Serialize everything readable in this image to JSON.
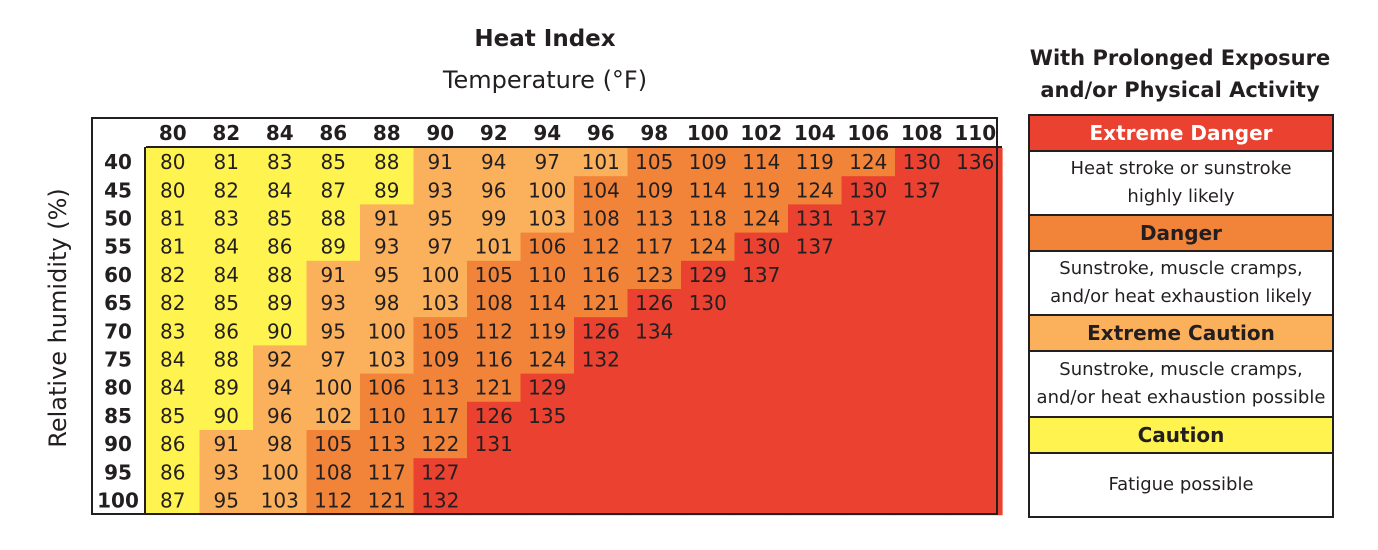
{
  "chart_data": {
    "type": "heatmap",
    "title": "Heat Index",
    "xlabel": "Temperature (°F)",
    "ylabel": "Relative humidity (%)",
    "temperatures": [
      "80",
      "82",
      "84",
      "86",
      "88",
      "90",
      "92",
      "94",
      "96",
      "98",
      "100",
      "102",
      "104",
      "106",
      "108",
      "110"
    ],
    "humidities": [
      "40",
      "45",
      "50",
      "55",
      "60",
      "65",
      "70",
      "75",
      "80",
      "85",
      "90",
      "95",
      "100"
    ],
    "values": [
      [
        80,
        81,
        83,
        85,
        88,
        91,
        94,
        97,
        101,
        105,
        109,
        114,
        119,
        124,
        130,
        136
      ],
      [
        80,
        82,
        84,
        87,
        89,
        93,
        96,
        100,
        104,
        109,
        114,
        119,
        124,
        130,
        137,
        null
      ],
      [
        81,
        83,
        85,
        88,
        91,
        95,
        99,
        103,
        108,
        113,
        118,
        124,
        131,
        137,
        null,
        null
      ],
      [
        81,
        84,
        86,
        89,
        93,
        97,
        101,
        106,
        112,
        117,
        124,
        130,
        137,
        null,
        null,
        null
      ],
      [
        82,
        84,
        88,
        91,
        95,
        100,
        105,
        110,
        116,
        123,
        129,
        137,
        null,
        null,
        null,
        null
      ],
      [
        82,
        85,
        89,
        93,
        98,
        103,
        108,
        114,
        121,
        126,
        130,
        null,
        null,
        null,
        null,
        null
      ],
      [
        83,
        86,
        90,
        95,
        100,
        105,
        112,
        119,
        126,
        134,
        null,
        null,
        null,
        null,
        null,
        null
      ],
      [
        84,
        88,
        92,
        97,
        103,
        109,
        116,
        124,
        132,
        null,
        null,
        null,
        null,
        null,
        null,
        null
      ],
      [
        84,
        89,
        94,
        100,
        106,
        113,
        121,
        129,
        null,
        null,
        null,
        null,
        null,
        null,
        null,
        null
      ],
      [
        85,
        90,
        96,
        102,
        110,
        117,
        126,
        135,
        null,
        null,
        null,
        null,
        null,
        null,
        null,
        null
      ],
      [
        86,
        91,
        98,
        105,
        113,
        122,
        131,
        null,
        null,
        null,
        null,
        null,
        null,
        null,
        null,
        null
      ],
      [
        86,
        93,
        100,
        108,
        117,
        127,
        null,
        null,
        null,
        null,
        null,
        null,
        null,
        null,
        null,
        null
      ],
      [
        87,
        95,
        103,
        112,
        121,
        132,
        null,
        null,
        null,
        null,
        null,
        null,
        null,
        null,
        null,
        null
      ]
    ],
    "categories": [
      {
        "name": "Caution",
        "min": 80,
        "max": 90,
        "color": "#fff34f"
      },
      {
        "name": "Extreme Caution",
        "min": 91,
        "max": 103,
        "color": "#fbb15c"
      },
      {
        "name": "Danger",
        "min": 104,
        "max": 124,
        "color": "#f2843a"
      },
      {
        "name": "Extreme Danger",
        "min": 125,
        "max": 137,
        "color": "#ea4130"
      }
    ]
  },
  "legend": {
    "title_line1": "With Prolonged Exposure",
    "title_line2": "and/or Physical Activity",
    "items": [
      {
        "label": "Extreme Danger",
        "desc_line1": "Heat stroke or sunstroke",
        "desc_line2": "highly likely",
        "color": "#ea4130"
      },
      {
        "label": "Danger",
        "desc_line1": "Sunstroke, muscle cramps,",
        "desc_line2": "and/or heat exhaustion likely",
        "color": "#f2843a"
      },
      {
        "label": "Extreme Caution",
        "desc_line1": "Sunstroke, muscle cramps,",
        "desc_line2": "and/or heat exhaustion possible",
        "color": "#fbb15c"
      },
      {
        "label": "Caution",
        "desc_line1": "Fatigue possible",
        "desc_line2": "",
        "color": "#fff34f"
      }
    ]
  }
}
